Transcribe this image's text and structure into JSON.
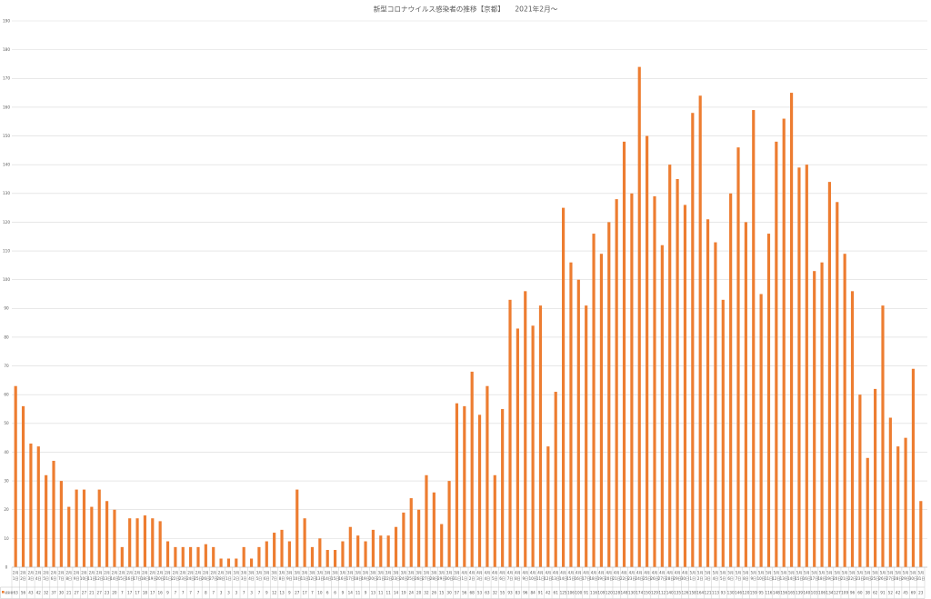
{
  "chart_data": {
    "type": "bar",
    "title": "新型コロナウイルス感染者の推移【京都】　　2021年2月～",
    "xlabel": "",
    "ylabel": "",
    "ylim": [
      0,
      190
    ],
    "yticks": [
      0,
      10,
      20,
      30,
      40,
      50,
      60,
      70,
      80,
      90,
      100,
      110,
      120,
      130,
      140,
      150,
      160,
      170,
      180,
      190
    ],
    "grid": true,
    "legend": "bottom",
    "data_table": true,
    "colors": {
      "grid": "#D9D9D9",
      "axis": "#BFBFBF",
      "text": "#595959"
    },
    "categories": [
      "2月1日",
      "2月2日",
      "2月3日",
      "2月4日",
      "2月5日",
      "2月6日",
      "2月7日",
      "2月8日",
      "2月9日",
      "2月10日",
      "2月11日",
      "2月12日",
      "2月13日",
      "2月14日",
      "2月15日",
      "2月16日",
      "2月17日",
      "2月18日",
      "2月19日",
      "2月20日",
      "2月21日",
      "2月22日",
      "2月23日",
      "2月24日",
      "2月25日",
      "2月26日",
      "2月27日",
      "2月28日",
      "3月1日",
      "3月2日",
      "3月3日",
      "3月4日",
      "3月5日",
      "3月6日",
      "3月7日",
      "3月8日",
      "3月9日",
      "3月10日",
      "3月11日",
      "3月12日",
      "3月13日",
      "3月14日",
      "3月15日",
      "3月16日",
      "3月17日",
      "3月18日",
      "3月19日",
      "3月20日",
      "3月21日",
      "3月22日",
      "3月23日",
      "3月24日",
      "3月25日",
      "3月26日",
      "3月27日",
      "3月28日",
      "3月29日",
      "3月30日",
      "3月31日",
      "4月1日",
      "4月2日",
      "4月3日",
      "4月4日",
      "4月5日",
      "4月6日",
      "4月7日",
      "4月8日",
      "4月9日",
      "4月10日",
      "4月11日",
      "4月12日",
      "4月13日",
      "4月14日",
      "4月15日",
      "4月16日",
      "4月17日",
      "4月18日",
      "4月19日",
      "4月20日",
      "4月21日",
      "4月22日",
      "4月23日",
      "4月24日",
      "4月25日",
      "4月26日",
      "4月27日",
      "4月28日",
      "4月29日",
      "4月30日",
      "5月1日",
      "5月2日",
      "5月3日",
      "5月4日",
      "5月5日",
      "5月6日",
      "5月7日",
      "5月8日",
      "5月9日",
      "5月10日",
      "5月11日",
      "5月12日",
      "5月13日",
      "5月14日",
      "5月15日",
      "5月16日",
      "5月17日",
      "5月18日",
      "5月19日",
      "5月20日",
      "5月21日",
      "5月22日",
      "5月23日",
      "5月24日",
      "5月25日",
      "5月26日",
      "5月27日",
      "5月28日",
      "5月29日",
      "5月30日",
      "5月31日"
    ],
    "series": [
      {
        "name": "感染者",
        "color": "#ED7D31",
        "values": [
          63,
          56,
          43,
          42,
          32,
          37,
          30,
          21,
          27,
          27,
          21,
          27,
          23,
          20,
          7,
          17,
          17,
          18,
          17,
          16,
          9,
          7,
          7,
          7,
          7,
          8,
          7,
          3,
          3,
          3,
          7,
          3,
          7,
          9,
          12,
          13,
          9,
          27,
          17,
          7,
          10,
          6,
          6,
          9,
          14,
          11,
          9,
          13,
          11,
          11,
          14,
          19,
          24,
          20,
          32,
          26,
          15,
          30,
          57,
          56,
          68,
          53,
          63,
          32,
          55,
          93,
          83,
          96,
          84,
          91,
          42,
          61,
          125,
          106,
          100,
          91,
          116,
          109,
          120,
          128,
          148,
          130,
          174,
          150,
          129,
          112,
          140,
          135,
          126,
          158,
          164,
          121,
          113,
          93,
          130,
          146,
          120,
          159,
          95,
          116,
          148,
          156,
          165,
          139,
          140,
          103,
          106,
          134,
          127,
          109,
          96,
          60,
          38,
          62,
          91,
          52,
          42,
          45,
          69,
          23
        ]
      }
    ]
  }
}
